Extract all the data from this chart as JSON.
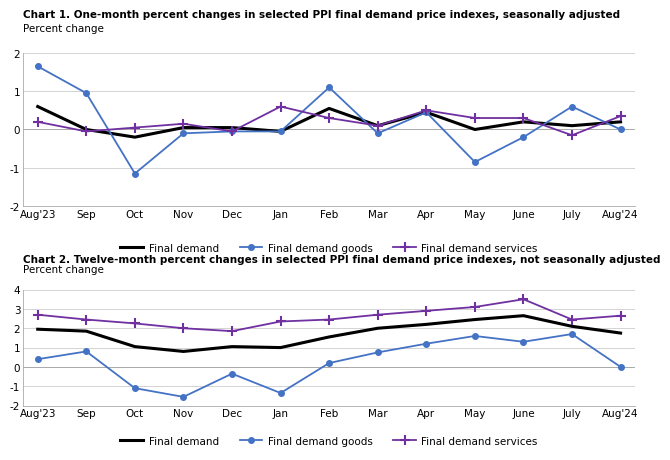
{
  "chart1_title": "Chart 1. One-month percent changes in selected PPI final demand price indexes, seasonally adjusted",
  "chart2_title": "Chart 2. Twelve-month percent changes in selected PPI final demand price indexes, not seasonally adjusted",
  "ylabel": "Percent change",
  "x_labels": [
    "Aug'23",
    "Sep",
    "Oct",
    "Nov",
    "Dec",
    "Jan",
    "Feb",
    "Mar",
    "Apr",
    "May",
    "June",
    "July",
    "Aug'24"
  ],
  "chart1": {
    "final_demand": [
      0.6,
      0.0,
      -0.2,
      0.05,
      0.05,
      -0.05,
      0.55,
      0.1,
      0.45,
      0.0,
      0.2,
      0.1,
      0.2
    ],
    "final_demand_goods": [
      1.65,
      0.95,
      -1.15,
      -0.1,
      -0.05,
      -0.05,
      1.1,
      -0.1,
      0.45,
      -0.85,
      -0.2,
      0.6,
      0.0
    ],
    "final_demand_services": [
      0.2,
      -0.05,
      0.05,
      0.15,
      -0.05,
      0.6,
      0.3,
      0.1,
      0.5,
      0.3,
      0.3,
      -0.15,
      0.35
    ]
  },
  "chart2": {
    "final_demand": [
      1.95,
      1.85,
      1.05,
      0.8,
      1.05,
      1.0,
      1.55,
      2.0,
      2.2,
      2.45,
      2.65,
      2.1,
      1.75
    ],
    "final_demand_goods": [
      0.4,
      0.8,
      -1.1,
      -1.55,
      -0.35,
      -1.35,
      0.2,
      0.75,
      1.2,
      1.6,
      1.3,
      1.7,
      0.0
    ],
    "final_demand_services": [
      2.7,
      2.45,
      2.25,
      2.0,
      1.85,
      2.35,
      2.45,
      2.7,
      2.9,
      3.1,
      3.5,
      2.45,
      2.65
    ]
  },
  "colors": {
    "final_demand": "#000000",
    "final_demand_goods": "#4472c4",
    "final_demand_services": "#7030a0"
  },
  "chart1_ylim": [
    -2.0,
    2.0
  ],
  "chart2_ylim": [
    -2.0,
    4.0
  ],
  "chart1_yticks": [
    -2.0,
    -1.0,
    0.0,
    1.0,
    2.0
  ],
  "chart2_yticks": [
    -2.0,
    -1.0,
    0.0,
    1.0,
    2.0,
    3.0,
    4.0
  ],
  "bg_color": "#ffffff",
  "grid_color": "#cccccc",
  "legend_labels": [
    "Final demand",
    "Final demand goods",
    "Final demand services"
  ]
}
